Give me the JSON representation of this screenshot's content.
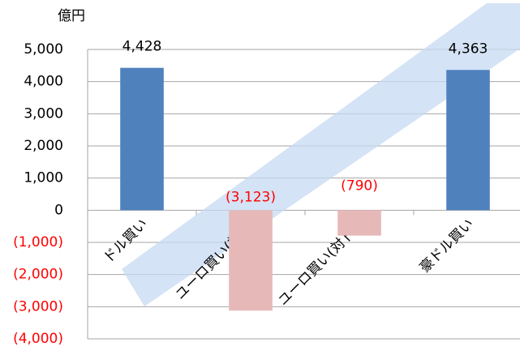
{
  "chart_data": {
    "type": "bar",
    "unit_label": "億円",
    "categories": [
      "ドル買い",
      "ユーロ買い(対円)",
      "ユーロ買い(対ド…",
      "豪ドル買い"
    ],
    "values": [
      4428,
      -3123,
      -790,
      4363
    ],
    "value_labels": [
      "4,428",
      "(3,123)",
      "(790)",
      "4,363"
    ],
    "positive_color": "#4f81bd",
    "negative_color": "#e6b9b8",
    "negative_label_color": "#ff0000",
    "ylim": [
      -4000,
      5000
    ],
    "yticks": [
      {
        "value": 5000,
        "label": "5,000"
      },
      {
        "value": 4000,
        "label": "4,000"
      },
      {
        "value": 3000,
        "label": "3,000"
      },
      {
        "value": 2000,
        "label": "2,000"
      },
      {
        "value": 1000,
        "label": "1,000"
      },
      0,
      {
        "value": -1000,
        "label": "(1,000)"
      },
      {
        "value": -2000,
        "label": "(2,000)"
      },
      {
        "value": -3000,
        "label": "(3,000)"
      },
      {
        "value": -4000,
        "label": "(4,000)"
      }
    ],
    "grid": true
  }
}
